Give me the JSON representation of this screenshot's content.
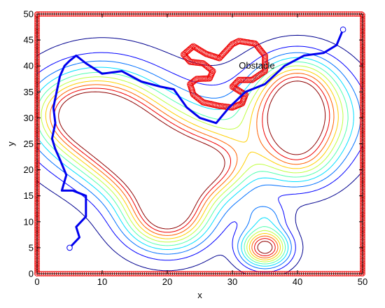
{
  "chart_data": {
    "type": "contour",
    "title": "",
    "xlabel": "x",
    "ylabel": "y",
    "xlim": [
      0,
      50
    ],
    "ylim": [
      0,
      50
    ],
    "xticks": [
      0,
      10,
      20,
      30,
      40,
      50
    ],
    "yticks": [
      0,
      5,
      10,
      15,
      20,
      25,
      30,
      35,
      40,
      45,
      50
    ],
    "grid": false,
    "annotation": {
      "text": "Obstacle",
      "x": 31,
      "y": 40
    },
    "colors": {
      "path": "#0000ee",
      "boundary": "#ee0000",
      "obstacle": "#ee0000",
      "endpoint": "#0000ee"
    },
    "contour_colormap": [
      "#00008f",
      "#0000ff",
      "#0070ff",
      "#00dfff",
      "#50ffaf",
      "#bfff40",
      "#ffcf00",
      "#ff6000",
      "#ef0000",
      "#8f0000"
    ],
    "peaks": [
      {
        "x": 10,
        "y": 29.7
      },
      {
        "x": 19.7,
        "y": 19.3
      },
      {
        "x": 20,
        "y": 10.5
      },
      {
        "x": 40,
        "y": 30
      },
      {
        "x": 35,
        "y": 5
      }
    ],
    "path": {
      "x": [
        47,
        46,
        44,
        41,
        38,
        35,
        32,
        29.5,
        27.5,
        25,
        23,
        21,
        19,
        16,
        13,
        10,
        7.5,
        6,
        5,
        4.2,
        3.5,
        3,
        2.5,
        2.8,
        2.3,
        2.8,
        3.5,
        4.5,
        3.8,
        5.5,
        7.5,
        7.5,
        6,
        6.5,
        5
      ],
      "y": [
        47,
        44,
        42.5,
        42,
        40,
        36.5,
        35,
        32,
        29,
        30,
        32,
        35.5,
        36,
        37,
        39,
        38.5,
        40.5,
        42,
        41,
        40,
        38,
        35,
        32,
        29,
        26,
        24,
        22,
        19,
        16,
        16,
        15,
        11,
        9,
        7,
        5
      ]
    },
    "endpoints": [
      {
        "x": 47,
        "y": 47
      },
      {
        "x": 5,
        "y": 5
      }
    ],
    "obstacle_region": {
      "x": [
        22.5,
        24,
        26,
        28,
        30,
        31,
        33.5,
        35,
        35,
        33,
        31,
        30,
        32,
        31.5,
        30,
        28,
        25.5,
        24,
        23.5,
        24.5,
        26.5,
        27,
        25.5,
        23.5,
        22.5
      ],
      "y": [
        42.2,
        43.8,
        42.3,
        41.5,
        44.2,
        44.8,
        44.3,
        42,
        39,
        37.3,
        37.3,
        36,
        34.5,
        32.8,
        32,
        32.3,
        33,
        34.5,
        36.5,
        37.5,
        37.6,
        39,
        40.5,
        40.8,
        42.2
      ]
    }
  }
}
